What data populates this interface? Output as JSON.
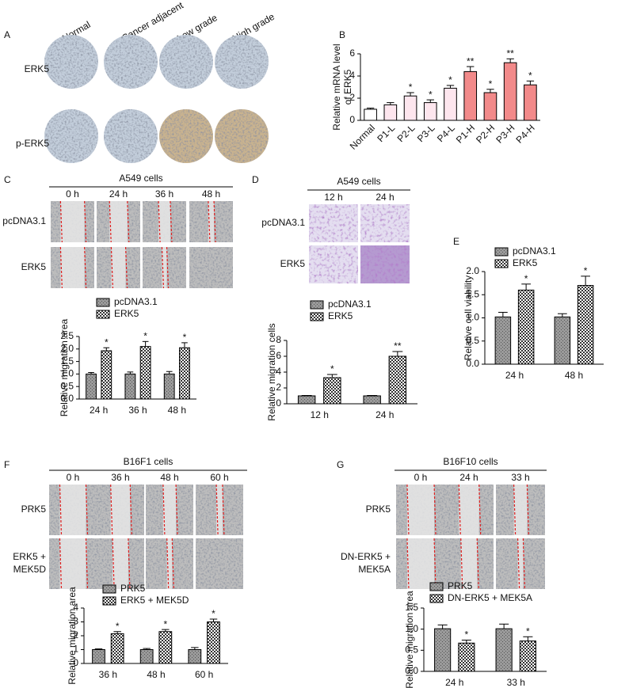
{
  "panels": {
    "A": {
      "letter": "A",
      "columns": [
        "Normal",
        "Cancer adjacent",
        "Low grade",
        "High grade"
      ],
      "rows": [
        [
          "ERK5"
        ],
        [
          "p-ERK5"
        ]
      ]
    },
    "B": {
      "letter": "B"
    },
    "C": {
      "letter": "C",
      "title": "A549 cells",
      "columns": [
        "0 h",
        "24 h",
        "36 h",
        "48 h"
      ],
      "rows": [
        [
          "pcDNA3.1"
        ],
        [
          "ERK5"
        ]
      ]
    },
    "D": {
      "letter": "D",
      "title": "A549 cells",
      "columns": [
        "12 h",
        "24 h"
      ],
      "rows": [
        [
          "pcDNA3.1"
        ],
        [
          "ERK5"
        ]
      ]
    },
    "E": {
      "letter": "E"
    },
    "F": {
      "letter": "F",
      "title": "B16F1 cells",
      "columns": [
        "0 h",
        "36 h",
        "48 h",
        "60 h"
      ],
      "rows": [
        [
          "PRK5"
        ],
        [
          "ERK5 +",
          "MEK5D"
        ]
      ]
    },
    "G": {
      "letter": "G",
      "title": "B16F10 cells",
      "columns": [
        "0 h",
        "24 h",
        "33 h"
      ],
      "rows": [
        [
          "PRK5"
        ],
        [
          "DN-ERK5 +",
          "MEK5A"
        ]
      ]
    }
  },
  "chart_data": [
    {
      "type": "bar",
      "y_label": [
        "Relative mRNA level",
        "of ERK5"
      ],
      "categories": [
        "Normal",
        "P1-L",
        "P2-L",
        "P3-L",
        "P4-L",
        "P1-H",
        "P2-H",
        "P3-H",
        "P4-H"
      ],
      "values": [
        1.0,
        1.4,
        2.2,
        1.6,
        2.9,
        4.4,
        2.5,
        5.2,
        3.2
      ],
      "errors": [
        0.1,
        0.2,
        0.3,
        0.25,
        0.25,
        0.45,
        0.3,
        0.35,
        0.35
      ],
      "colors": [
        "#ffffff",
        "#fde6ee",
        "#fde6ee",
        "#fde6ee",
        "#fde6ee",
        "#f28a8a",
        "#f28a8a",
        "#f28a8a",
        "#f28a8a"
      ],
      "significance": [
        null,
        null,
        "*",
        "*",
        "*",
        "**",
        "*",
        "**",
        "*"
      ],
      "ylim": [
        0,
        6
      ],
      "yticks": [
        0,
        2,
        4,
        6
      ]
    },
    {
      "type": "grouped_bar",
      "y_label": "Relative migration area",
      "categories": [
        "24 h",
        "36 h",
        "48 h"
      ],
      "series": [
        {
          "name": "pcDNA3.1",
          "color": "#555555",
          "pattern": "dots",
          "values": [
            1.0,
            1.0,
            1.0
          ],
          "errors": [
            0.06,
            0.08,
            0.1
          ],
          "significance": [
            null,
            null,
            null
          ]
        },
        {
          "name": "ERK5",
          "color": "#333333",
          "pattern": "checker",
          "values": [
            1.93,
            2.1,
            2.05
          ],
          "errors": [
            0.12,
            0.2,
            0.2
          ],
          "significance": [
            "*",
            "*",
            "*"
          ]
        }
      ],
      "ylim": [
        0,
        2.5
      ],
      "yticks": [
        {
          "value": 0,
          "label": "0.0"
        },
        0.5,
        {
          "value": 1,
          "label": "1.0"
        },
        1.5,
        {
          "value": 2,
          "label": "2.0"
        },
        2.5
      ]
    },
    {
      "type": "grouped_bar",
      "y_label": "Relative migration cells",
      "categories": [
        "12 h",
        "24 h"
      ],
      "series": [
        {
          "name": "pcDNA3.1",
          "color": "#555555",
          "pattern": "dots",
          "values": [
            1.0,
            1.0
          ],
          "errors": [
            0.05,
            0.05
          ],
          "significance": [
            null,
            null
          ]
        },
        {
          "name": "ERK5",
          "color": "#333333",
          "pattern": "checker",
          "values": [
            3.3,
            6.0
          ],
          "errors": [
            0.4,
            0.6
          ],
          "significance": [
            "*",
            "**"
          ]
        }
      ],
      "ylim": [
        0,
        8
      ],
      "yticks": [
        0,
        2,
        4,
        6,
        8
      ]
    },
    {
      "type": "grouped_bar",
      "y_label": "Relative cell viability",
      "categories": [
        "24 h",
        "48 h"
      ],
      "series": [
        {
          "name": "pcDNA3.1",
          "color": "#555555",
          "pattern": "dots",
          "values": [
            1.02,
            1.02
          ],
          "errors": [
            0.1,
            0.07
          ],
          "significance": [
            null,
            null
          ]
        },
        {
          "name": "ERK5",
          "color": "#333333",
          "pattern": "checker",
          "values": [
            1.6,
            1.7
          ],
          "errors": [
            0.13,
            0.2
          ],
          "significance": [
            "*",
            "*"
          ]
        }
      ],
      "ylim": [
        0,
        2
      ],
      "yticks": [
        {
          "value": 0,
          "label": "0.0"
        },
        0.5,
        {
          "value": 1,
          "label": "1.0"
        },
        1.5,
        {
          "value": 2,
          "label": "2.0"
        }
      ]
    },
    {
      "type": "grouped_bar",
      "y_label": "Relative migration area",
      "categories": [
        "36 h",
        "48 h",
        "60 h"
      ],
      "series": [
        {
          "name": "PRK5",
          "color": "#555555",
          "pattern": "dots",
          "values": [
            1.0,
            1.0,
            1.0
          ],
          "errors": [
            0.05,
            0.08,
            0.15
          ],
          "significance": [
            null,
            null,
            null
          ]
        },
        {
          "name": "ERK5 + MEK5D",
          "color": "#333333",
          "pattern": "checker",
          "values": [
            2.15,
            2.3,
            3.0
          ],
          "errors": [
            0.15,
            0.15,
            0.2
          ],
          "significance": [
            "*",
            "*",
            "*"
          ]
        }
      ],
      "ylim": [
        0,
        4
      ],
      "yticks": [
        0,
        1,
        2,
        3,
        4
      ]
    },
    {
      "type": "grouped_bar",
      "y_label": "Relative migration area",
      "categories": [
        "24 h",
        "33 h"
      ],
      "series": [
        {
          "name": "PRK5",
          "color": "#555555",
          "pattern": "dots",
          "values": [
            1.01,
            1.01
          ],
          "errors": [
            0.09,
            0.11
          ],
          "significance": [
            null,
            null
          ]
        },
        {
          "name": "DN-ERK5 + MEK5A",
          "color": "#333333",
          "pattern": "checker",
          "values": [
            0.67,
            0.72
          ],
          "errors": [
            0.07,
            0.1
          ],
          "significance": [
            "*",
            "*"
          ]
        }
      ],
      "ylim": [
        0,
        1.5
      ],
      "yticks": [
        {
          "value": 0,
          "label": "0.0"
        },
        0.5,
        {
          "value": 1,
          "label": "1.0"
        },
        1.5
      ]
    }
  ]
}
